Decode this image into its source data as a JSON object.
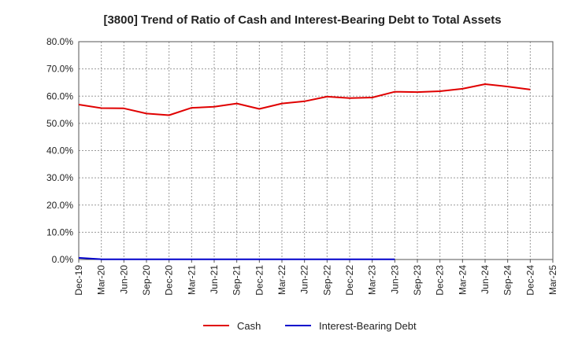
{
  "chart_data": {
    "type": "line",
    "title": "[3800]  Trend of Ratio of Cash and Interest-Bearing Debt to Total Assets",
    "xlabel": "",
    "ylabel": "",
    "categories": [
      "Dec-19",
      "Mar-20",
      "Jun-20",
      "Sep-20",
      "Dec-20",
      "Mar-21",
      "Jun-21",
      "Sep-21",
      "Dec-21",
      "Mar-22",
      "Jun-22",
      "Sep-22",
      "Dec-22",
      "Mar-23",
      "Jun-23",
      "Sep-23",
      "Dec-23",
      "Mar-24",
      "Jun-24",
      "Sep-24",
      "Dec-24",
      "Mar-25"
    ],
    "y_ticks": [
      "0.0%",
      "10.0%",
      "20.0%",
      "30.0%",
      "40.0%",
      "50.0%",
      "60.0%",
      "70.0%",
      "80.0%"
    ],
    "ylim": [
      0,
      80
    ],
    "grid": true,
    "legend_position": "bottom",
    "series": [
      {
        "name": "Cash",
        "color": "#e00000",
        "values": [
          56.9,
          55.6,
          55.5,
          53.6,
          53.0,
          55.7,
          56.1,
          57.3,
          55.3,
          57.3,
          58.1,
          59.8,
          59.3,
          59.5,
          61.6,
          61.5,
          61.8,
          62.7,
          64.4,
          63.5,
          62.4,
          null
        ]
      },
      {
        "name": "Interest-Bearing Debt",
        "color": "#0000cc",
        "values": [
          0.6,
          0.1,
          0.1,
          0.1,
          0.1,
          0.1,
          0.1,
          0.1,
          0.1,
          0.1,
          0.1,
          0.1,
          0.1,
          0.1,
          0.1,
          null,
          null,
          null,
          null,
          null,
          null,
          null
        ]
      }
    ]
  }
}
